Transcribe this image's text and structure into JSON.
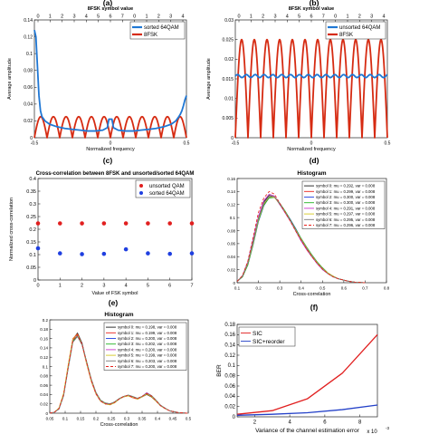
{
  "panel_labels": [
    "(a)",
    "(b)",
    "(c)",
    "(d)",
    "(e)",
    "(f)"
  ],
  "chart_data": [
    {
      "id": "a",
      "type": "line",
      "title": "",
      "top_axis_label": "8FSK symbol value",
      "top_ticks": [
        "0",
        "1",
        "2",
        "3",
        "4",
        "5",
        "6",
        "7",
        "0",
        "1",
        "2",
        "3",
        "4"
      ],
      "xlabel": "Normalized frequency",
      "ylabel": "Average amplitude",
      "xlim": [
        -0.5,
        0.5
      ],
      "ylim": [
        0,
        0.14
      ],
      "xticks": [
        "-0.5",
        "0",
        "0.5"
      ],
      "yticks": [
        "0",
        "0.02",
        "0.04",
        "0.06",
        "0.08",
        "0.1",
        "0.12",
        "0.14"
      ],
      "legend_position": "top-right",
      "series": [
        {
          "name": "sorted 64QAM",
          "color": "#1f77d4",
          "kind": "sorted_a",
          "x": [
            -0.5,
            -0.49,
            -0.48,
            -0.47,
            -0.46,
            -0.45,
            -0.43,
            -0.4,
            -0.35,
            -0.3,
            -0.25,
            -0.2,
            -0.15,
            -0.1,
            -0.05,
            -0.02,
            -0.01,
            0,
            0.01,
            0.02,
            0.05,
            0.1,
            0.15,
            0.2,
            0.25,
            0.3,
            0.35,
            0.4,
            0.43,
            0.45,
            0.46,
            0.47,
            0.48,
            0.49,
            0.5
          ],
          "y": [
            0.128,
            0.12,
            0.085,
            0.05,
            0.032,
            0.025,
            0.02,
            0.016,
            0.013,
            0.011,
            0.01,
            0.009,
            0.008,
            0.008,
            0.009,
            0.012,
            0.022,
            0.022,
            0.022,
            0.012,
            0.009,
            0.008,
            0.008,
            0.009,
            0.01,
            0.011,
            0.013,
            0.016,
            0.02,
            0.025,
            0.028,
            0.032,
            0.038,
            0.045,
            0.05
          ]
        },
        {
          "name": "8FSK",
          "color": "#d62b12",
          "kind": "fsk",
          "peak": 0.025,
          "trough": 0.0,
          "cycles": 12
        }
      ]
    },
    {
      "id": "b",
      "type": "line",
      "title": "",
      "top_axis_label": "8FSK symbol value",
      "top_ticks": [
        "0",
        "1",
        "2",
        "3",
        "4",
        "5",
        "6",
        "7",
        "0",
        "1",
        "2",
        "3",
        "4"
      ],
      "xlabel": "Normalized frequency",
      "ylabel": "Average amplitude",
      "xlim": [
        -0.5,
        0.5
      ],
      "ylim": [
        0,
        0.03
      ],
      "xticks": [
        "-0.5",
        "0",
        "0.5"
      ],
      "yticks": [
        "0",
        "0.005",
        "0.01",
        "0.015",
        "0.02",
        "0.025",
        "0.03"
      ],
      "legend_position": "top-right",
      "series": [
        {
          "name": "unsorted 64QAM",
          "color": "#1f77d4",
          "kind": "flat",
          "level": 0.0157
        },
        {
          "name": "8FSK",
          "color": "#d62b12",
          "kind": "fsk",
          "peak": 0.025,
          "trough": 0.0,
          "cycles": 12
        }
      ]
    },
    {
      "id": "c",
      "type": "scatter",
      "title": "Cross-correlation between 8FSK and unsorted/sorted 64QAM",
      "xlabel": "Value of FSK symbol",
      "ylabel": "Normalized cross-correlation",
      "xlim": [
        0,
        7
      ],
      "ylim": [
        0,
        0.4
      ],
      "xticks": [
        "0",
        "1",
        "2",
        "3",
        "4",
        "5",
        "6",
        "7"
      ],
      "yticks": [
        "0",
        "0.05",
        "0.1",
        "0.15",
        "0.2",
        "0.25",
        "0.3",
        "0.35",
        "0.4"
      ],
      "legend_position": "top-right",
      "series": [
        {
          "name": "unsorted QAM",
          "color": "#e11f1f",
          "x": [
            0,
            1,
            2,
            3,
            4,
            5,
            6,
            7
          ],
          "y": [
            0.223,
            0.223,
            0.223,
            0.223,
            0.223,
            0.223,
            0.223,
            0.223
          ]
        },
        {
          "name": "sorted 64QAM",
          "color": "#1f3fe0",
          "x": [
            0,
            1,
            2,
            3,
            4,
            5,
            6,
            7
          ],
          "y": [
            0.125,
            0.105,
            0.102,
            0.103,
            0.121,
            0.105,
            0.103,
            0.105
          ]
        }
      ]
    },
    {
      "id": "d",
      "type": "line",
      "title": "Histogram",
      "xlabel": "Cross-correlation",
      "ylabel": "",
      "xlim": [
        0.1,
        0.8
      ],
      "ylim": [
        0,
        0.16
      ],
      "xticks": [
        "0.1",
        "0.2",
        "0.3",
        "0.4",
        "0.5",
        "0.6",
        "0.7",
        "0.8"
      ],
      "yticks": [
        "0",
        "0.02",
        "0.04",
        "0.06",
        "0.08",
        "0.1",
        "0.12",
        "0.14",
        "0.16"
      ],
      "legend_position": "top-right",
      "x": [
        0.1,
        0.125,
        0.15,
        0.175,
        0.2,
        0.225,
        0.25,
        0.275,
        0.3,
        0.325,
        0.35,
        0.375,
        0.4,
        0.425,
        0.45,
        0.475,
        0.5,
        0.525,
        0.55,
        0.575,
        0.6,
        0.625,
        0.65,
        0.675,
        0.7
      ],
      "series": [
        {
          "name": "symbol 0: mu = 0.292, var = 0.008",
          "color": "#1a1a1a",
          "dash": "",
          "y": [
            0.002,
            0.01,
            0.03,
            0.065,
            0.1,
            0.124,
            0.134,
            0.132,
            0.12,
            0.108,
            0.095,
            0.08,
            0.065,
            0.052,
            0.04,
            0.03,
            0.021,
            0.014,
            0.009,
            0.006,
            0.004,
            0.002,
            0.001,
            0.0005,
            0.0
          ]
        },
        {
          "name": "symbol 1: mu = 0.299, var = 0.008",
          "color": "#e8201a",
          "dash": "",
          "y": [
            0.002,
            0.009,
            0.028,
            0.06,
            0.096,
            0.12,
            0.132,
            0.131,
            0.121,
            0.109,
            0.096,
            0.082,
            0.067,
            0.054,
            0.042,
            0.031,
            0.022,
            0.015,
            0.01,
            0.006,
            0.004,
            0.002,
            0.001,
            0.0005,
            0.0
          ]
        },
        {
          "name": "symbol 2: mu = 0.300, var = 0.008",
          "color": "#1f3fe0",
          "dash": "",
          "y": [
            0.002,
            0.009,
            0.027,
            0.058,
            0.094,
            0.118,
            0.131,
            0.132,
            0.122,
            0.11,
            0.097,
            0.083,
            0.068,
            0.055,
            0.043,
            0.032,
            0.023,
            0.015,
            0.01,
            0.006,
            0.004,
            0.002,
            0.001,
            0.0005,
            0.0
          ]
        },
        {
          "name": "symbol 3: mu = 0.300, var = 0.008",
          "color": "#22b322",
          "dash": "",
          "y": [
            0.002,
            0.009,
            0.027,
            0.059,
            0.095,
            0.119,
            0.13,
            0.131,
            0.122,
            0.11,
            0.096,
            0.082,
            0.068,
            0.055,
            0.043,
            0.032,
            0.023,
            0.015,
            0.01,
            0.006,
            0.004,
            0.002,
            0.001,
            0.0005,
            0.0
          ]
        },
        {
          "name": "symbol 4: mu = 0.291, var = 0.008",
          "color": "#cc33cc",
          "dash": "",
          "y": [
            0.002,
            0.011,
            0.032,
            0.067,
            0.102,
            0.126,
            0.136,
            0.133,
            0.12,
            0.107,
            0.094,
            0.079,
            0.064,
            0.051,
            0.04,
            0.029,
            0.02,
            0.014,
            0.009,
            0.006,
            0.004,
            0.002,
            0.001,
            0.0005,
            0.0
          ]
        },
        {
          "name": "symbol 5: mu = 0.297, var = 0.008",
          "color": "#d6c820",
          "dash": "",
          "y": [
            0.002,
            0.01,
            0.029,
            0.061,
            0.097,
            0.121,
            0.132,
            0.131,
            0.121,
            0.109,
            0.095,
            0.081,
            0.067,
            0.054,
            0.042,
            0.031,
            0.022,
            0.015,
            0.01,
            0.006,
            0.004,
            0.002,
            0.001,
            0.0005,
            0.0
          ]
        },
        {
          "name": "symbol 6: mu = 0.295, var = 0.008",
          "color": "#7a7a7a",
          "dash": "",
          "y": [
            0.002,
            0.01,
            0.03,
            0.063,
            0.099,
            0.122,
            0.133,
            0.132,
            0.121,
            0.108,
            0.095,
            0.08,
            0.066,
            0.053,
            0.041,
            0.03,
            0.021,
            0.014,
            0.009,
            0.006,
            0.004,
            0.002,
            0.001,
            0.0005,
            0.0
          ]
        },
        {
          "name": "symbol 7: mu = 0.296, var = 0.008",
          "color": "#e8201a",
          "dash": "3,2",
          "y": [
            0.002,
            0.011,
            0.033,
            0.07,
            0.108,
            0.13,
            0.14,
            0.136,
            0.122,
            0.108,
            0.094,
            0.079,
            0.065,
            0.052,
            0.04,
            0.03,
            0.021,
            0.014,
            0.009,
            0.006,
            0.004,
            0.002,
            0.001,
            0.0005,
            0.0
          ]
        }
      ]
    },
    {
      "id": "e",
      "type": "line",
      "title": "Histogram",
      "xlabel": "Cross-correlation",
      "ylabel": "",
      "xlim": [
        0.05,
        0.5
      ],
      "ylim": [
        0,
        0.2
      ],
      "xticks": [
        "0.05",
        "0.1",
        "0.15",
        "0.2",
        "0.25",
        "0.3",
        "0.35",
        "0.4",
        "0.45",
        "0.5"
      ],
      "yticks": [
        "0",
        "0.02",
        "0.04",
        "0.06",
        "0.08",
        "0.1",
        "0.12",
        "0.14",
        "0.16",
        "0.18",
        "0.2"
      ],
      "legend_position": "top-right",
      "x": [
        0.05,
        0.065,
        0.08,
        0.095,
        0.11,
        0.125,
        0.14,
        0.155,
        0.17,
        0.185,
        0.2,
        0.215,
        0.23,
        0.245,
        0.26,
        0.275,
        0.29,
        0.305,
        0.32,
        0.335,
        0.35,
        0.365,
        0.38,
        0.395,
        0.41,
        0.425,
        0.44,
        0.455,
        0.47,
        0.485,
        0.5
      ],
      "series": [
        {
          "name": "symbol 0: mu = 0.198, var = 0.008",
          "color": "#1a1a1a",
          "dash": "",
          "y": [
            0.0,
            0.002,
            0.01,
            0.04,
            0.1,
            0.158,
            0.172,
            0.15,
            0.108,
            0.07,
            0.042,
            0.026,
            0.02,
            0.018,
            0.022,
            0.03,
            0.036,
            0.038,
            0.034,
            0.03,
            0.035,
            0.04,
            0.035,
            0.026,
            0.016,
            0.01,
            0.005,
            0.003,
            0.001,
            0.0005,
            0.0
          ]
        },
        {
          "name": "symbol 1: mu = 0.199, var = 0.008",
          "color": "#e8201a",
          "dash": "",
          "y": [
            0.0,
            0.002,
            0.011,
            0.042,
            0.103,
            0.16,
            0.17,
            0.146,
            0.105,
            0.068,
            0.041,
            0.026,
            0.02,
            0.019,
            0.023,
            0.031,
            0.036,
            0.037,
            0.033,
            0.03,
            0.036,
            0.041,
            0.036,
            0.026,
            0.016,
            0.01,
            0.005,
            0.003,
            0.001,
            0.0005,
            0.0
          ]
        },
        {
          "name": "symbol 2: mu = 0.200, var = 0.008",
          "color": "#1f3fe0",
          "dash": "",
          "y": [
            0.0,
            0.002,
            0.009,
            0.038,
            0.098,
            0.155,
            0.168,
            0.148,
            0.109,
            0.071,
            0.043,
            0.027,
            0.021,
            0.019,
            0.023,
            0.03,
            0.035,
            0.038,
            0.035,
            0.031,
            0.035,
            0.042,
            0.037,
            0.027,
            0.017,
            0.01,
            0.005,
            0.003,
            0.001,
            0.0005,
            0.0
          ]
        },
        {
          "name": "symbol 3: mu = 0.202, var = 0.008",
          "color": "#22b322",
          "dash": "",
          "y": [
            0.0,
            0.002,
            0.01,
            0.039,
            0.099,
            0.154,
            0.165,
            0.147,
            0.11,
            0.072,
            0.044,
            0.028,
            0.022,
            0.02,
            0.024,
            0.031,
            0.036,
            0.038,
            0.035,
            0.032,
            0.036,
            0.043,
            0.038,
            0.028,
            0.017,
            0.01,
            0.005,
            0.003,
            0.001,
            0.0005,
            0.0
          ]
        },
        {
          "name": "symbol 4: mu = 0.200, var = 0.008",
          "color": "#cc33cc",
          "dash": "",
          "y": [
            0.0,
            0.002,
            0.01,
            0.041,
            0.101,
            0.157,
            0.167,
            0.147,
            0.107,
            0.07,
            0.042,
            0.026,
            0.02,
            0.019,
            0.023,
            0.03,
            0.035,
            0.037,
            0.034,
            0.031,
            0.036,
            0.044,
            0.038,
            0.027,
            0.016,
            0.01,
            0.005,
            0.003,
            0.001,
            0.0005,
            0.0
          ]
        },
        {
          "name": "symbol 5: mu = 0.199, var = 0.008",
          "color": "#d6c820",
          "dash": "",
          "y": [
            0.0,
            0.002,
            0.011,
            0.043,
            0.104,
            0.159,
            0.169,
            0.147,
            0.106,
            0.069,
            0.042,
            0.026,
            0.02,
            0.018,
            0.022,
            0.03,
            0.035,
            0.037,
            0.034,
            0.03,
            0.035,
            0.041,
            0.036,
            0.026,
            0.016,
            0.01,
            0.005,
            0.003,
            0.001,
            0.0005,
            0.0
          ]
        },
        {
          "name": "symbol 6: mu = 0.203, var = 0.008",
          "color": "#7a7a7a",
          "dash": "",
          "y": [
            0.0,
            0.002,
            0.009,
            0.037,
            0.096,
            0.152,
            0.164,
            0.146,
            0.11,
            0.073,
            0.045,
            0.028,
            0.022,
            0.02,
            0.024,
            0.031,
            0.036,
            0.039,
            0.036,
            0.032,
            0.036,
            0.043,
            0.038,
            0.028,
            0.017,
            0.011,
            0.005,
            0.003,
            0.001,
            0.0005,
            0.0
          ]
        },
        {
          "name": "symbol 7: mu = 0.200, var = 0.008",
          "color": "#e8201a",
          "dash": "3,2",
          "y": [
            0.0,
            0.002,
            0.01,
            0.04,
            0.1,
            0.156,
            0.168,
            0.148,
            0.108,
            0.07,
            0.042,
            0.026,
            0.02,
            0.019,
            0.023,
            0.03,
            0.036,
            0.038,
            0.034,
            0.031,
            0.036,
            0.042,
            0.037,
            0.027,
            0.016,
            0.01,
            0.005,
            0.003,
            0.001,
            0.0005,
            0.0
          ]
        }
      ]
    },
    {
      "id": "f",
      "type": "line",
      "title": "",
      "xlabel": "Variance of the channel estimation error",
      "ylabel": "BER",
      "x_exponent": "x 10",
      "x_exponent_power": "-3",
      "xlim": [
        1,
        9
      ],
      "ylim": [
        0,
        0.18
      ],
      "xticks": [
        "2",
        "4",
        "6",
        "8"
      ],
      "yticks": [
        "0",
        "0.02",
        "0.04",
        "0.06",
        "0.08",
        "0.1",
        "0.12",
        "0.14",
        "0.16",
        "0.18"
      ],
      "legend_position": "top-left",
      "series": [
        {
          "name": "SIC",
          "color": "#e11f1f",
          "x": [
            1,
            3,
            5,
            7,
            9
          ],
          "y": [
            0.005,
            0.012,
            0.035,
            0.085,
            0.16
          ]
        },
        {
          "name": "SIC+reorder",
          "color": "#2340c8",
          "x": [
            1,
            3,
            5,
            7,
            9
          ],
          "y": [
            0.003,
            0.005,
            0.008,
            0.014,
            0.023
          ]
        }
      ]
    }
  ]
}
